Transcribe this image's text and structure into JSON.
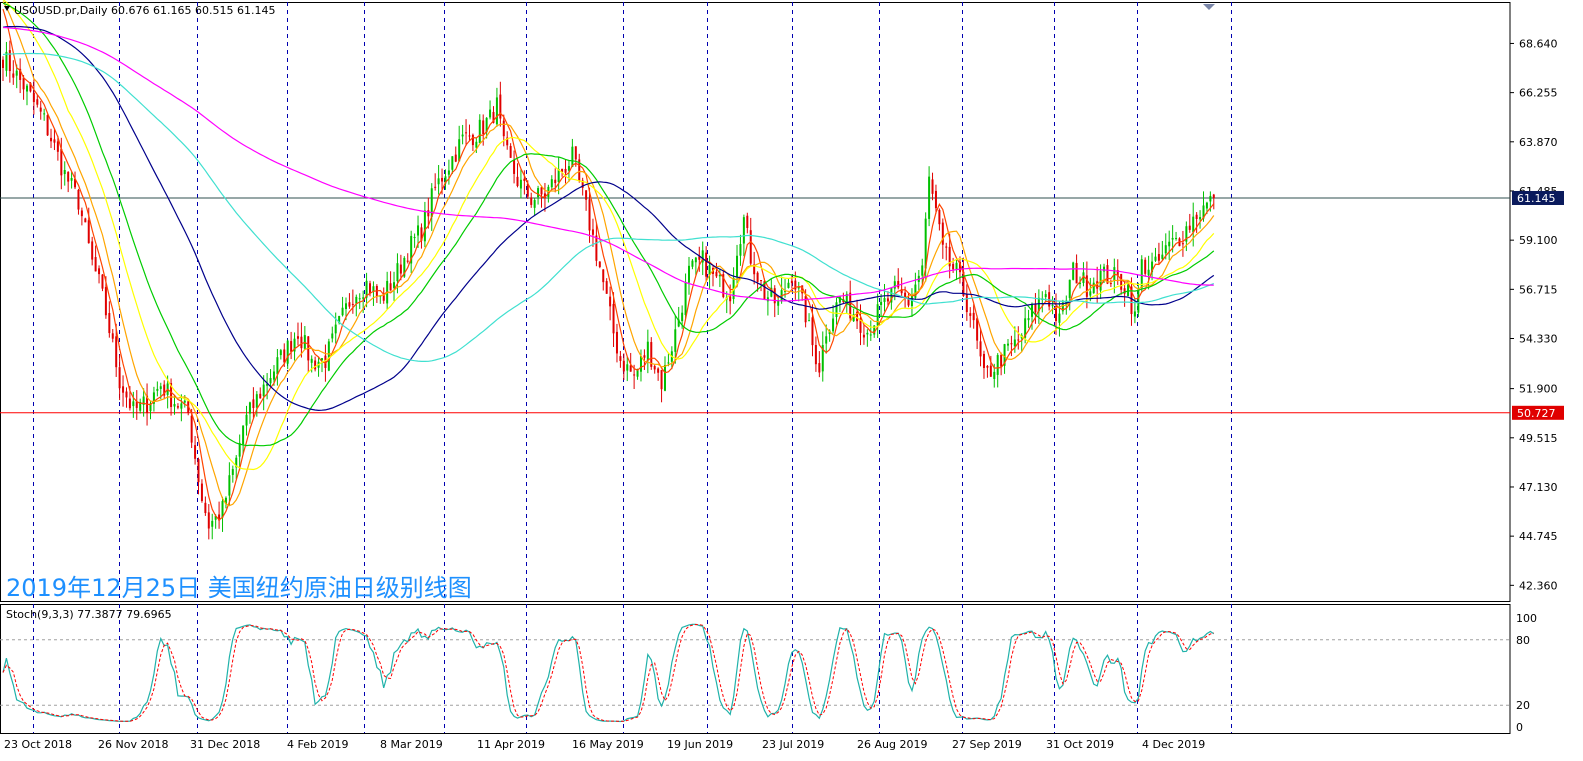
{
  "chart_data": [
    {
      "type": "candlestick",
      "symbol_header": "USOUSD.pr,Daily  60.676 61.165 60.515 61.145",
      "overlay_title": "2019年12月25日 美国纽约原油日级别线图",
      "price_axis_ticks": [
        "68.640",
        "66.255",
        "63.870",
        "61.485",
        "59.100",
        "56.715",
        "54.330",
        "51.900",
        "49.515",
        "47.130",
        "44.745",
        "42.360"
      ],
      "price_tick_values": [
        68.64,
        66.255,
        63.87,
        61.485,
        59.1,
        56.715,
        54.33,
        51.9,
        49.515,
        47.13,
        44.745,
        42.36
      ],
      "ylim": [
        41.6,
        70.65
      ],
      "date_axis_labels": [
        "23 Oct 2018",
        "26 Nov 2018",
        "31 Dec 2018",
        "4 Feb 2019",
        "8 Mar 2019",
        "11 Apr 2019",
        "16 May 2019",
        "19 Jun 2019",
        "23 Jul 2019",
        "26 Aug 2019",
        "27 Sep 2019",
        "31 Oct 2019",
        "4 Dec 2019"
      ],
      "current_price_label": "61.145",
      "current_price": 61.145,
      "support_label": "50.727",
      "support_price": 50.727,
      "close_path": [
        [
          0,
          68.0
        ],
        [
          6,
          66.6
        ],
        [
          12,
          64.9
        ],
        [
          18,
          62.3
        ],
        [
          22,
          61.0
        ],
        [
          26,
          58.0
        ],
        [
          28,
          57.0
        ],
        [
          30,
          55.6
        ],
        [
          34,
          52.3
        ],
        [
          38,
          50.8
        ],
        [
          42,
          51.2
        ],
        [
          46,
          52.1
        ],
        [
          50,
          51.3
        ],
        [
          54,
          50.7
        ],
        [
          56,
          48.6
        ],
        [
          58,
          46.6
        ],
        [
          60,
          45.3
        ],
        [
          62,
          45.6
        ],
        [
          64,
          46.0
        ],
        [
          66,
          47.3
        ],
        [
          68,
          48.4
        ],
        [
          70,
          50.1
        ],
        [
          74,
          51.4
        ],
        [
          78,
          52.6
        ],
        [
          82,
          53.6
        ],
        [
          86,
          54.7
        ],
        [
          90,
          53.2
        ],
        [
          94,
          53.3
        ],
        [
          98,
          55.0
        ],
        [
          102,
          56.5
        ],
        [
          106,
          57.0
        ],
        [
          110,
          56.2
        ],
        [
          114,
          57.2
        ],
        [
          118,
          58.6
        ],
        [
          122,
          59.6
        ],
        [
          126,
          61.6
        ],
        [
          130,
          62.8
        ],
        [
          134,
          64.0
        ],
        [
          138,
          64.3
        ],
        [
          142,
          65.0
        ],
        [
          144,
          65.6
        ],
        [
          146,
          63.6
        ],
        [
          150,
          62.0
        ],
        [
          154,
          61.1
        ],
        [
          158,
          61.3
        ],
        [
          162,
          62.3
        ],
        [
          166,
          63.1
        ],
        [
          170,
          60.6
        ],
        [
          174,
          57.8
        ],
        [
          178,
          54.6
        ],
        [
          180,
          53.3
        ],
        [
          184,
          52.5
        ],
        [
          188,
          53.9
        ],
        [
          192,
          52.2
        ],
        [
          196,
          54.6
        ],
        [
          200,
          57.5
        ],
        [
          204,
          58.1
        ],
        [
          208,
          57.1
        ],
        [
          212,
          56.6
        ],
        [
          214,
          58.8
        ],
        [
          216,
          60.1
        ],
        [
          218,
          58.3
        ],
        [
          222,
          56.5
        ],
        [
          226,
          56.0
        ],
        [
          230,
          57.5
        ],
        [
          234,
          55.5
        ],
        [
          236,
          54.0
        ],
        [
          238,
          53.0
        ],
        [
          240,
          54.8
        ],
        [
          244,
          56.3
        ],
        [
          248,
          55.6
        ],
        [
          252,
          54.7
        ],
        [
          256,
          55.8
        ],
        [
          260,
          56.6
        ],
        [
          264,
          56.1
        ],
        [
          268,
          57.8
        ],
        [
          270,
          62.0
        ],
        [
          272,
          60.4
        ],
        [
          274,
          58.5
        ],
        [
          276,
          57.9
        ],
        [
          278,
          57.5
        ],
        [
          282,
          55.6
        ],
        [
          286,
          52.4
        ],
        [
          288,
          52.8
        ],
        [
          292,
          53.6
        ],
        [
          296,
          54.2
        ],
        [
          300,
          55.6
        ],
        [
          304,
          56.6
        ],
        [
          308,
          55.1
        ],
        [
          312,
          57.6
        ],
        [
          316,
          56.9
        ],
        [
          320,
          57.4
        ],
        [
          324,
          57.3
        ],
        [
          328,
          56.8
        ],
        [
          330,
          55.3
        ],
        [
          332,
          57.9
        ],
        [
          336,
          57.8
        ],
        [
          340,
          58.8
        ],
        [
          344,
          59.4
        ],
        [
          348,
          60.4
        ],
        [
          352,
          60.9
        ],
        [
          353,
          61.145
        ]
      ]
    },
    {
      "type": "line",
      "indicator_label": "Stoch(9,3,3) 77.3877 79.6965",
      "ylim": [
        0,
        100
      ],
      "ticks": [
        "100",
        "80",
        "20",
        "0"
      ],
      "tick_values": [
        100,
        80,
        20,
        0
      ],
      "level_lines": [
        80,
        20
      ],
      "colors": {
        "main": "#20B2AA",
        "signal": "#FF0000"
      }
    }
  ],
  "colors": {
    "bg": "#FFFFFF",
    "grid": "#0000B0",
    "bull": "#00C000",
    "bear": "#E00000",
    "hline_current": "#2F4F4F",
    "hline_support": "#FF0000",
    "title_overlay": "#1E90FF",
    "ma": {
      "fast": "#FF4500",
      "mid": "#FFA500",
      "slow1": "#FFFF00",
      "slow2": "#00CC00",
      "slow3": "#00008B",
      "slow4": "#40E0D0",
      "slow5": "#FF00FF"
    }
  }
}
